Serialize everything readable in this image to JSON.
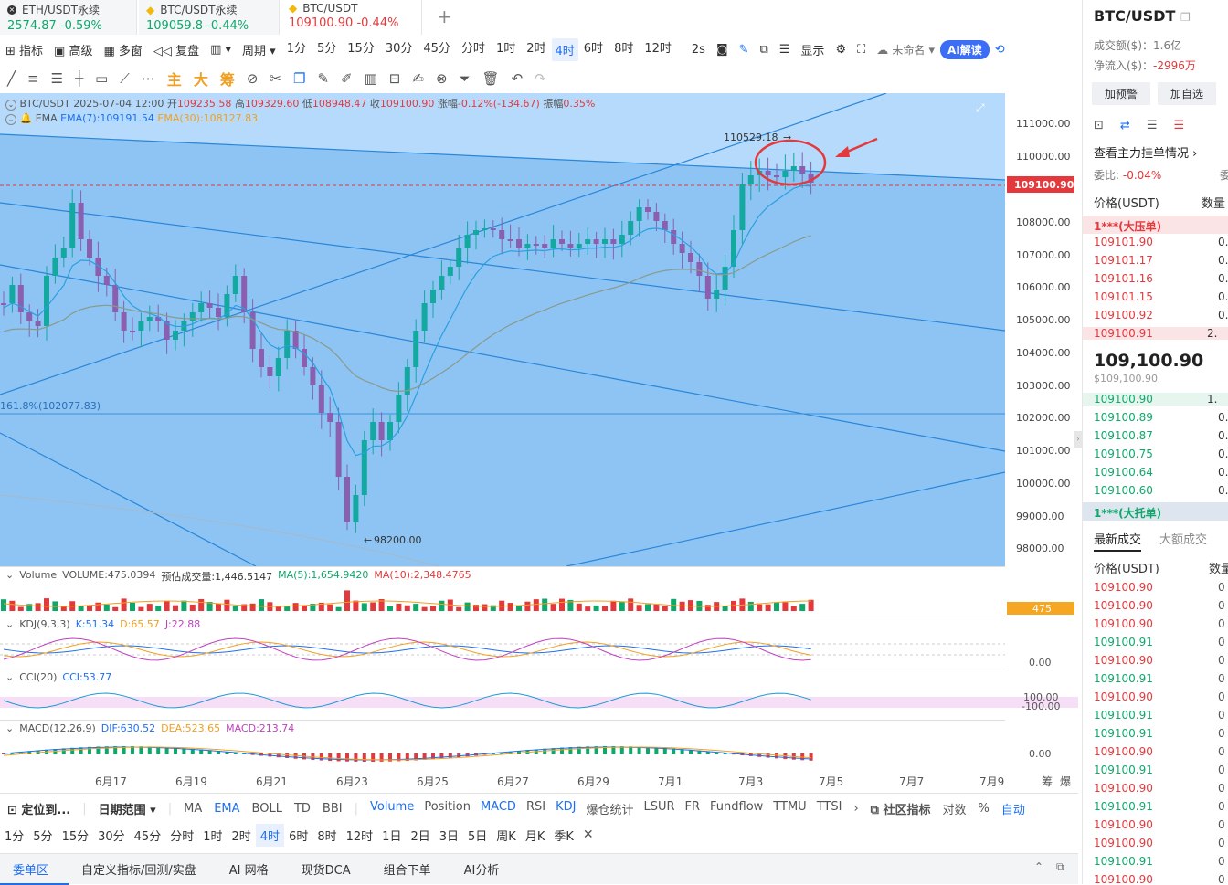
{
  "tabs": [
    {
      "name": "ETH/USDT永续",
      "price": "2574.87",
      "change": "-0.59%",
      "color": "green"
    },
    {
      "name": "BTC/USDT永续",
      "price": "109059.8",
      "change": "-0.44%",
      "color": "green"
    },
    {
      "name": "BTC/USDT",
      "price": "109100.90",
      "change": "-0.44%",
      "color": "red"
    }
  ],
  "toolbar": {
    "indicator": "指标",
    "advanced": "高级",
    "multi": "多窗",
    "replay": "复盘",
    "period": "周期",
    "intervals": [
      "1分",
      "5分",
      "15分",
      "30分",
      "45分",
      "分时",
      "1时",
      "2时",
      "4时",
      "6时",
      "8时",
      "12时"
    ],
    "selected": "4时",
    "refresh": "2s",
    "display": "显示",
    "unnamed": "未命名",
    "ai": "AI解读"
  },
  "drawtools": {
    "main": "主",
    "big": "大",
    "chips": "筹"
  },
  "chart": {
    "header": "BTC/USDT  2025-07-04 12:00",
    "open_label": "开",
    "open": "109235.58",
    "high_label": "高",
    "high": "109329.60",
    "low_label": "低",
    "low": "108948.47",
    "close_label": "收",
    "close": "109100.90",
    "change_label": "涨幅",
    "change": "-0.12%(-134.67)",
    "amp_label": "振幅",
    "amp": "0.35%",
    "ema_name": "EMA",
    "ema7": "EMA(7):109191.54",
    "ema30": "EMA(30):108127.83",
    "high_mark": "110529.18",
    "low_mark": "98200.00",
    "fib": "161.8%(102077.83)",
    "last_price_tag": "109100.90",
    "y_ticks": [
      "111000.00",
      "110000.00",
      "108000.00",
      "107000.00",
      "106000.00",
      "105000.00",
      "104000.00",
      "103000.00",
      "102000.00",
      "101000.00",
      "100000.00",
      "99000.00",
      "98000.00"
    ],
    "x_ticks": [
      "6月17",
      "6月19",
      "6月21",
      "6月23",
      "6月25",
      "6月27",
      "6月29",
      "7月1",
      "7月3",
      "7月5",
      "7月7",
      "7月9"
    ],
    "x_right": [
      "筹",
      "爆"
    ]
  },
  "volume": {
    "title": "Volume",
    "vol": "VOLUME:475.0394",
    "est": "预估成交量:1,446.5147",
    "ma5": "MA(5):1,654.9420",
    "ma10": "MA(10):2,348.4765",
    "tag": "475"
  },
  "kdj": {
    "title": "KDJ(9,3,3)",
    "k": "K:51.34",
    "d": "D:65.57",
    "j": "J:22.88",
    "tick": "0.00"
  },
  "cci": {
    "title": "CCI(20)",
    "v": "CCI:53.77",
    "t1": "100.00",
    "t2": "-100.00"
  },
  "macd": {
    "title": "MACD(12,26,9)",
    "dif": "DIF:630.52",
    "dea": "DEA:523.65",
    "m": "MACD:213.74",
    "tick": "0.00"
  },
  "bottombar": {
    "locate": "定位到...",
    "range": "日期范围",
    "mains": [
      "MA",
      "EMA",
      "BOLL",
      "TD",
      "BBI"
    ],
    "subs": [
      "Volume",
      "Position",
      "MACD",
      "RSI",
      "KDJ",
      "爆仓统计",
      "LSUR",
      "FR",
      "Fundflow",
      "TTMU",
      "TTSI"
    ],
    "community": "社区指标",
    "log": "对数",
    "pct": "%",
    "auto": "自动"
  },
  "periodbar": [
    "1分",
    "5分",
    "15分",
    "30分",
    "45分",
    "分时",
    "1时",
    "2时",
    "4时",
    "6时",
    "8时",
    "12时",
    "1日",
    "2日",
    "3日",
    "5日",
    "周K",
    "月K",
    "季K"
  ],
  "bottomtabs": [
    "委单区",
    "自定义指标/回测/实盘",
    "AI 网格",
    "现货DCA",
    "组合下单",
    "AI分析"
  ],
  "side": {
    "pair": "BTC/USDT",
    "turnover": "成交额($)：1.6亿",
    "netflow_label": "净流入($)：",
    "netflow": "-2996万",
    "btn1": "加预警",
    "btn2": "加自选",
    "depth": "查看主力挂单情况 ›",
    "ratio_label": "委比:",
    "ratio": "-0.04%",
    "ratio_more": "委",
    "col_price": "价格(USDT)",
    "col_qty": "数量",
    "big_sell": "1***(大压单)",
    "asks": [
      [
        "109101.90",
        "0."
      ],
      [
        "109101.17",
        "0."
      ],
      [
        "109101.16",
        "0."
      ],
      [
        "109101.15",
        "0."
      ],
      [
        "109100.92",
        "0."
      ],
      [
        "109100.91",
        "2."
      ]
    ],
    "last": "109,100.90",
    "last_usd": "$109,100.90",
    "bids": [
      [
        "109100.90",
        "1."
      ],
      [
        "109100.89",
        "0."
      ],
      [
        "109100.87",
        "0."
      ],
      [
        "109100.75",
        "0."
      ],
      [
        "109100.64",
        "0."
      ],
      [
        "109100.60",
        "0."
      ]
    ],
    "big_buy": "1***(大托单)",
    "trade_tab1": "最新成交",
    "trade_tab2": "大额成交",
    "t_col_price": "价格(USDT)",
    "t_col_qty": "数量(E",
    "trades": [
      [
        "109100.90",
        "red"
      ],
      [
        "109100.90",
        "red"
      ],
      [
        "109100.90",
        "red"
      ],
      [
        "109100.91",
        "green"
      ],
      [
        "109100.90",
        "red"
      ],
      [
        "109100.91",
        "green"
      ],
      [
        "109100.90",
        "red"
      ],
      [
        "109100.91",
        "green"
      ],
      [
        "109100.91",
        "green"
      ],
      [
        "109100.90",
        "red"
      ],
      [
        "109100.91",
        "green"
      ],
      [
        "109100.90",
        "red"
      ],
      [
        "109100.91",
        "green"
      ],
      [
        "109100.90",
        "red"
      ],
      [
        "109100.90",
        "red"
      ],
      [
        "109100.91",
        "green"
      ],
      [
        "109100.90",
        "red"
      ]
    ]
  }
}
